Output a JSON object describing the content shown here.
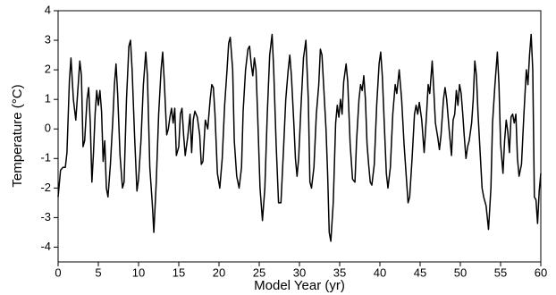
{
  "chart_data": {
    "type": "line",
    "x_label": "Model Year (yr)",
    "y_label": "Temperature (°C)",
    "xlim": [
      0,
      60
    ],
    "xticks": [
      0,
      5,
      10,
      15,
      20,
      25,
      30,
      35,
      40,
      45,
      50,
      55,
      60
    ],
    "ylim": [
      -4.5,
      4
    ],
    "yticks": [
      -4,
      -3,
      -2,
      -1,
      0,
      1,
      2,
      3,
      4
    ],
    "series": [
      {
        "color": "#000000",
        "x": [
          0,
          0.3,
          0.6,
          0.9,
          1.1,
          1.4,
          1.6,
          1.9,
          2.2,
          2.5,
          2.7,
          2.9,
          3.1,
          3.3,
          3.6,
          3.8,
          4.0,
          4.2,
          4.4,
          4.6,
          4.8,
          5.0,
          5.2,
          5.4,
          5.6,
          5.8,
          6.0,
          6.2,
          6.5,
          6.8,
          7.0,
          7.2,
          7.4,
          7.7,
          8.0,
          8.2,
          8.5,
          8.8,
          9.0,
          9.2,
          9.5,
          9.8,
          10.0,
          10.3,
          10.6,
          10.9,
          11.1,
          11.4,
          11.7,
          11.9,
          12.2,
          12.5,
          12.8,
          13.0,
          13.2,
          13.5,
          13.7,
          13.9,
          14.1,
          14.3,
          14.5,
          14.7,
          15.0,
          15.2,
          15.4,
          15.6,
          15.8,
          16.1,
          16.4,
          16.6,
          16.8,
          17.0,
          17.3,
          17.6,
          17.8,
          18.0,
          18.3,
          18.6,
          18.9,
          19.1,
          19.3,
          19.5,
          19.8,
          20.1,
          20.4,
          20.7,
          21.0,
          21.2,
          21.4,
          21.7,
          21.9,
          22.2,
          22.5,
          22.8,
          23.0,
          23.3,
          23.6,
          23.8,
          24.0,
          24.2,
          24.4,
          24.6,
          24.8,
          25.1,
          25.4,
          25.7,
          26.0,
          26.3,
          26.6,
          26.8,
          27.1,
          27.4,
          27.7,
          28.0,
          28.3,
          28.6,
          28.8,
          29.0,
          29.3,
          29.5,
          29.7,
          29.9,
          30.2,
          30.5,
          30.8,
          31.1,
          31.3,
          31.5,
          31.8,
          32.1,
          32.4,
          32.6,
          32.8,
          33.0,
          33.3,
          33.5,
          33.7,
          33.9,
          34.2,
          34.5,
          34.7,
          34.9,
          35.1,
          35.3,
          35.5,
          35.8,
          36.0,
          36.3,
          36.6,
          36.9,
          37.1,
          37.4,
          37.6,
          37.8,
          38.0,
          38.2,
          38.4,
          38.6,
          38.8,
          39.0,
          39.3,
          39.6,
          39.9,
          40.1,
          40.3,
          40.6,
          40.8,
          41.0,
          41.3,
          41.6,
          41.9,
          42.1,
          42.4,
          42.7,
          43.0,
          43.3,
          43.5,
          43.7,
          44.0,
          44.3,
          44.5,
          44.7,
          44.9,
          45.2,
          45.5,
          45.8,
          46.0,
          46.2,
          46.5,
          46.7,
          46.9,
          47.2,
          47.4,
          47.6,
          47.9,
          48.1,
          48.3,
          48.6,
          48.9,
          49.1,
          49.3,
          49.5,
          49.7,
          49.9,
          50.1,
          50.3,
          50.5,
          50.7,
          50.9,
          51.1,
          51.4,
          51.6,
          51.8,
          52.0,
          52.2,
          52.5,
          52.7,
          52.9,
          53.2,
          53.5,
          53.8,
          54.0,
          54.3,
          54.6,
          54.8,
          55.0,
          55.3,
          55.5,
          55.7,
          55.9,
          56.1,
          56.3,
          56.5,
          56.7,
          56.9,
          57.1,
          57.3,
          57.6,
          57.9,
          58.2,
          58.4,
          58.6,
          58.8,
          59.0,
          59.2,
          59.4,
          59.6,
          59.8,
          60.0
        ],
        "values": [
          -2.3,
          -1.4,
          -1.3,
          -1.3,
          -0.8,
          1.6,
          2.4,
          1.0,
          0.3,
          1.5,
          2.3,
          1.8,
          -0.6,
          -0.4,
          1.0,
          1.4,
          0.2,
          -1.8,
          -0.8,
          0.5,
          1.3,
          0.8,
          1.3,
          0.6,
          -1.1,
          -0.4,
          -2.0,
          -2.3,
          -1.2,
          0.3,
          1.5,
          2.2,
          1.2,
          -0.9,
          -2.0,
          -1.8,
          1.0,
          2.8,
          3.0,
          2.0,
          -0.2,
          -2.1,
          -1.7,
          -0.4,
          1.5,
          2.6,
          1.8,
          -1.3,
          -2.5,
          -3.5,
          -1.8,
          0.5,
          2.0,
          2.6,
          1.6,
          -0.2,
          0,
          0.4,
          0.7,
          0.2,
          0.7,
          -0.9,
          -0.6,
          0.5,
          0.7,
          -0.2,
          -0.9,
          -0.3,
          0.5,
          -0.8,
          0.3,
          0.6,
          0.4,
          -0.2,
          -1.2,
          -1.1,
          0.3,
          0.0,
          1.0,
          1.5,
          1.4,
          0.5,
          -1.5,
          -2.0,
          -1.0,
          0.8,
          2.0,
          2.9,
          3.1,
          2.0,
          -0.4,
          -1.6,
          -2.0,
          -1.3,
          0.6,
          2.0,
          2.7,
          2.8,
          2.2,
          1.8,
          2.4,
          2.0,
          0.5,
          -2.0,
          -3.1,
          -2.0,
          0.5,
          2.5,
          3.2,
          2.0,
          -0.5,
          -2.5,
          -2.5,
          -0.8,
          1.0,
          2.0,
          2.5,
          1.8,
          0.2,
          -1.0,
          -1.6,
          -1.0,
          0.8,
          2.4,
          3.0,
          1.0,
          -1.8,
          -2.0,
          -1.3,
          0.5,
          1.5,
          2.7,
          2.5,
          1.5,
          0.0,
          -1.5,
          -3.5,
          -3.8,
          -2.5,
          0.2,
          0.8,
          0.4,
          1.0,
          0.5,
          1.6,
          2.2,
          1.6,
          -0.5,
          -1.7,
          -1.8,
          -0.4,
          1.0,
          1.5,
          1.3,
          1.8,
          1.0,
          -0.5,
          -1.2,
          -1.8,
          -1.9,
          -1.2,
          0.8,
          2.2,
          2.6,
          1.8,
          -0.2,
          -1.5,
          -2.0,
          -1.3,
          0.5,
          1.5,
          1.2,
          2.0,
          1.0,
          -0.5,
          -1.7,
          -2.5,
          -2.3,
          -1.0,
          0.5,
          0.8,
          0.5,
          0.9,
          0.3,
          -0.8,
          0.5,
          1.5,
          1.2,
          2.3,
          1.3,
          0.2,
          -0.3,
          -0.7,
          -0.2,
          1.0,
          1.4,
          1.0,
          0.0,
          -0.9,
          0.3,
          0.5,
          1.3,
          0.8,
          1.5,
          1.2,
          0.5,
          -0.3,
          -1.0,
          -0.6,
          -0.4,
          0.2,
          1.0,
          2.3,
          1.8,
          0.5,
          -1.0,
          -2.0,
          -2.3,
          -2.6,
          -3.4,
          -2.0,
          0.2,
          1.5,
          2.6,
          1.5,
          -0.5,
          -1.5,
          -0.4,
          0.3,
          -0.1,
          -0.8,
          0.4,
          0.5,
          0.2,
          0.5,
          -1.0,
          -1.6,
          -1.2,
          0.5,
          2.0,
          1.5,
          2.5,
          3.2,
          2.0,
          -2.3,
          -2.4,
          -3.2,
          -2.1,
          -1.5
        ]
      }
    ]
  }
}
